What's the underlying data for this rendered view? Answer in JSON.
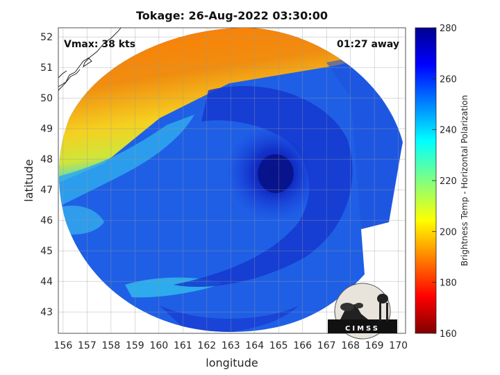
{
  "title": "Tokage: 26-Aug-2022 03:30:00",
  "annotations": {
    "vmax": "Vmax: 38 kts",
    "time_away": "01:27 away"
  },
  "axes": {
    "xlabel": "longitude",
    "ylabel": "latitude",
    "xlim": [
      155.8,
      170.3
    ],
    "ylim": [
      42.3,
      52.3
    ],
    "xticks": [
      "156",
      "157",
      "158",
      "159",
      "160",
      "161",
      "162",
      "163",
      "164",
      "165",
      "166",
      "167",
      "168",
      "169",
      "170"
    ],
    "yticks": [
      "43",
      "44",
      "45",
      "46",
      "47",
      "48",
      "49",
      "50",
      "51",
      "52"
    ],
    "grid": true
  },
  "colorbar": {
    "label": "Brightness Temp - Horizontal Polarization",
    "min": 160,
    "max": 280,
    "ticks": [
      "160",
      "180",
      "200",
      "220",
      "240",
      "260",
      "280"
    ],
    "colormap": "jet"
  },
  "logo": {
    "text": "CIMSS"
  },
  "chart_data": {
    "type": "heatmap",
    "title": "Tokage: 26-Aug-2022 03:30:00",
    "xlabel": "longitude",
    "ylabel": "latitude",
    "storm_center": {
      "lon": 164.8,
      "lat": 47.2
    },
    "swath_center": {
      "lon": 162.8,
      "lat": 47.3
    },
    "field_samples": [
      {
        "lon": 158,
        "lat": 50.5,
        "temp": 193
      },
      {
        "lon": 161,
        "lat": 50.5,
        "temp": 190
      },
      {
        "lon": 158,
        "lat": 48.2,
        "temp": 212
      },
      {
        "lon": 157,
        "lat": 47,
        "temp": 236
      },
      {
        "lon": 160,
        "lat": 45,
        "temp": 252
      },
      {
        "lon": 164.8,
        "lat": 47.2,
        "temp": 272
      },
      {
        "lon": 163,
        "lat": 43.6,
        "temp": 258
      },
      {
        "lon": 167.5,
        "lat": 48.5,
        "temp": 252
      }
    ]
  }
}
